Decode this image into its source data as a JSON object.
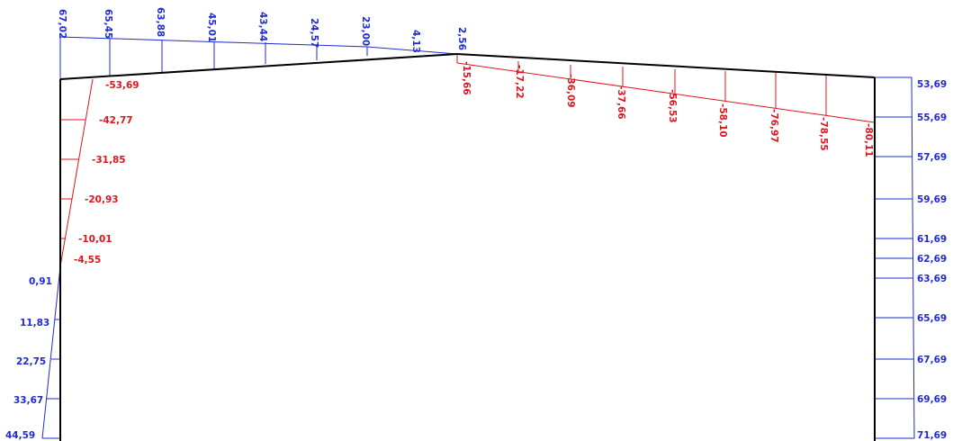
{
  "diagram": {
    "colors": {
      "frame": "#000000",
      "positive": "#1f2bd0",
      "negative": "#e0141e"
    },
    "left_column": {
      "negative_labels": [
        "-53,69",
        "-42,77",
        "-31,85",
        "-20,93",
        "-10,01",
        "-4,55"
      ],
      "positive_labels": [
        "0,91",
        "11,83",
        "22,75",
        "33,67",
        "44,59"
      ]
    },
    "left_rafter": {
      "labels": [
        "67,02",
        "65,45",
        "63,88",
        "45,01",
        "43,44",
        "24,57",
        "23,00",
        "4,13",
        "2,56"
      ]
    },
    "right_rafter": {
      "labels": [
        "-15,66",
        "-17,22",
        "-36,09",
        "-37,66",
        "-56,53",
        "-58,10",
        "-76,97",
        "-78,55",
        "-80,11"
      ]
    },
    "right_column": {
      "labels": [
        "53,69",
        "55,69",
        "57,69",
        "59,69",
        "61,69",
        "62,69",
        "63,69",
        "65,69",
        "67,69",
        "69,69",
        "71,69"
      ]
    }
  }
}
